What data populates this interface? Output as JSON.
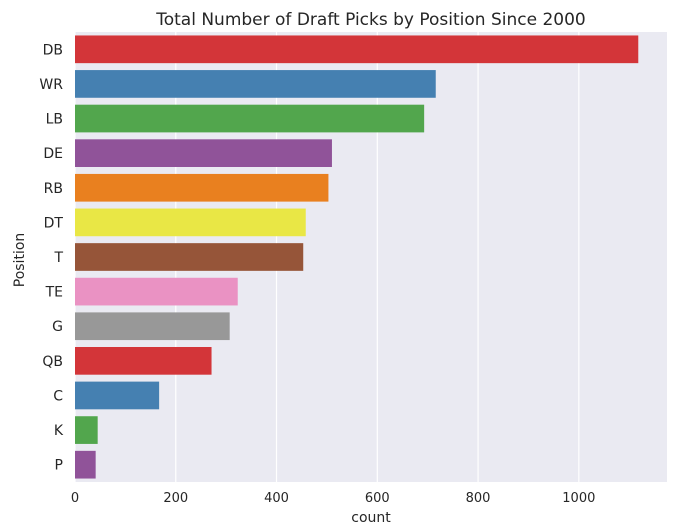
{
  "chart_data": {
    "type": "bar",
    "orientation": "horizontal",
    "title": "Total Number of Draft Picks by Position Since 2000",
    "xlabel": "count",
    "ylabel": "Position",
    "categories": [
      "DB",
      "WR",
      "LB",
      "DE",
      "RB",
      "DT",
      "T",
      "TE",
      "G",
      "QB",
      "C",
      "K",
      "P"
    ],
    "values": [
      1118,
      716,
      693,
      510,
      503,
      458,
      453,
      323,
      307,
      271,
      167,
      45,
      41
    ],
    "colors": [
      "#d33539",
      "#4580b1",
      "#52a64d",
      "#905399",
      "#e9801f",
      "#e9e745",
      "#965539",
      "#ea92c3",
      "#989898",
      "#d33539",
      "#4580b1",
      "#52a64d",
      "#905399"
    ],
    "xlim": [
      0,
      1175
    ],
    "xticks": [
      0,
      200,
      400,
      600,
      800,
      1000
    ],
    "grid": true,
    "background": "#eaeaf2"
  }
}
